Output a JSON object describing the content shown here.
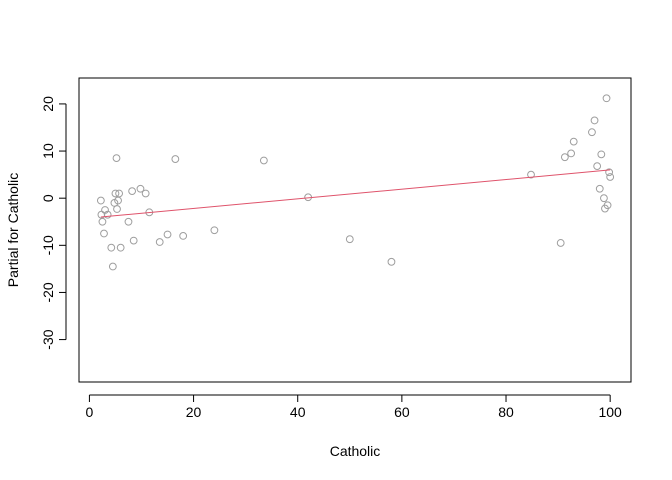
{
  "chart_data": {
    "type": "scatter",
    "title": "",
    "xlabel": "Catholic",
    "ylabel": "Partial for Catholic",
    "xlim": [
      -2,
      104
    ],
    "ylim": [
      -39,
      25.5
    ],
    "xticks": [
      0,
      20,
      40,
      60,
      80,
      100
    ],
    "yticks": [
      -30,
      -20,
      -10,
      0,
      10,
      20
    ],
    "grid": false,
    "legend": "none",
    "colors": {
      "points": "#9e9e9e",
      "fit_line": "#df536b",
      "frame": "#000000"
    },
    "points": [
      {
        "x": 2.2,
        "y": -0.5
      },
      {
        "x": 2.3,
        "y": -3.5
      },
      {
        "x": 2.5,
        "y": -5.0
      },
      {
        "x": 2.8,
        "y": -7.5
      },
      {
        "x": 3.0,
        "y": -2.5
      },
      {
        "x": 3.5,
        "y": -3.5
      },
      {
        "x": 4.2,
        "y": -10.5
      },
      {
        "x": 4.5,
        "y": -14.5
      },
      {
        "x": 4.8,
        "y": -1.0
      },
      {
        "x": 5.0,
        "y": 1.0
      },
      {
        "x": 5.2,
        "y": 8.5
      },
      {
        "x": 5.3,
        "y": -2.3
      },
      {
        "x": 5.5,
        "y": -0.5
      },
      {
        "x": 5.7,
        "y": 1.0
      },
      {
        "x": 6.0,
        "y": -10.5
      },
      {
        "x": 7.5,
        "y": -5.0
      },
      {
        "x": 8.2,
        "y": 1.5
      },
      {
        "x": 8.5,
        "y": -9.0
      },
      {
        "x": 9.8,
        "y": 2.0
      },
      {
        "x": 10.8,
        "y": 1.0
      },
      {
        "x": 11.5,
        "y": -3.0
      },
      {
        "x": 13.5,
        "y": -9.3
      },
      {
        "x": 15.0,
        "y": -7.7
      },
      {
        "x": 16.5,
        "y": 8.3
      },
      {
        "x": 18.0,
        "y": -8.0
      },
      {
        "x": 24.0,
        "y": -6.8
      },
      {
        "x": 33.5,
        "y": 8.0
      },
      {
        "x": 42.0,
        "y": 0.2
      },
      {
        "x": 50.0,
        "y": -8.7
      },
      {
        "x": 58.0,
        "y": -13.5
      },
      {
        "x": 84.8,
        "y": 5.0
      },
      {
        "x": 90.5,
        "y": -9.5
      },
      {
        "x": 91.3,
        "y": 8.7
      },
      {
        "x": 92.5,
        "y": 9.5
      },
      {
        "x": 93.0,
        "y": 12.0
      },
      {
        "x": 96.5,
        "y": 14.0
      },
      {
        "x": 97.0,
        "y": 16.5
      },
      {
        "x": 97.5,
        "y": 6.8
      },
      {
        "x": 98.0,
        "y": 2.0
      },
      {
        "x": 98.3,
        "y": 9.3
      },
      {
        "x": 98.8,
        "y": 0.0
      },
      {
        "x": 99.0,
        "y": -2.2
      },
      {
        "x": 99.3,
        "y": 21.2
      },
      {
        "x": 99.5,
        "y": -1.5
      },
      {
        "x": 99.8,
        "y": 5.5
      },
      {
        "x": 100.0,
        "y": 4.5
      }
    ],
    "fit_line": {
      "x": [
        2.2,
        100.0
      ],
      "y": [
        -4.0,
        6.0
      ]
    }
  }
}
